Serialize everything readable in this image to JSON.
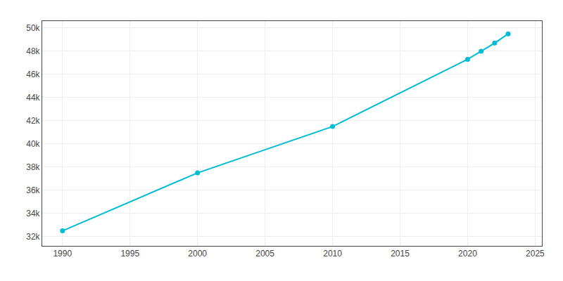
{
  "chart_data": {
    "type": "line",
    "x": [
      1990,
      2000,
      2010,
      2020,
      2021,
      2022,
      2023
    ],
    "values": [
      32500,
      37500,
      41500,
      47300,
      48000,
      48700,
      49500
    ],
    "color": "#00BCD4",
    "marker": "circle",
    "xlim": [
      1988.5,
      2025.5
    ],
    "ylim": [
      31200,
      50600
    ],
    "xticks": [
      1990,
      1995,
      2000,
      2005,
      2010,
      2015,
      2020,
      2025
    ],
    "yticks": [
      {
        "value": 32000,
        "label": "32k"
      },
      {
        "value": 34000,
        "label": "34k"
      },
      {
        "value": 36000,
        "label": "36k"
      },
      {
        "value": 38000,
        "label": "38k"
      },
      {
        "value": 40000,
        "label": "40k"
      },
      {
        "value": 42000,
        "label": "42k"
      },
      {
        "value": 44000,
        "label": "44k"
      },
      {
        "value": 46000,
        "label": "46k"
      },
      {
        "value": 48000,
        "label": "48k"
      },
      {
        "value": 50000,
        "label": "50k"
      }
    ],
    "grid": true
  }
}
